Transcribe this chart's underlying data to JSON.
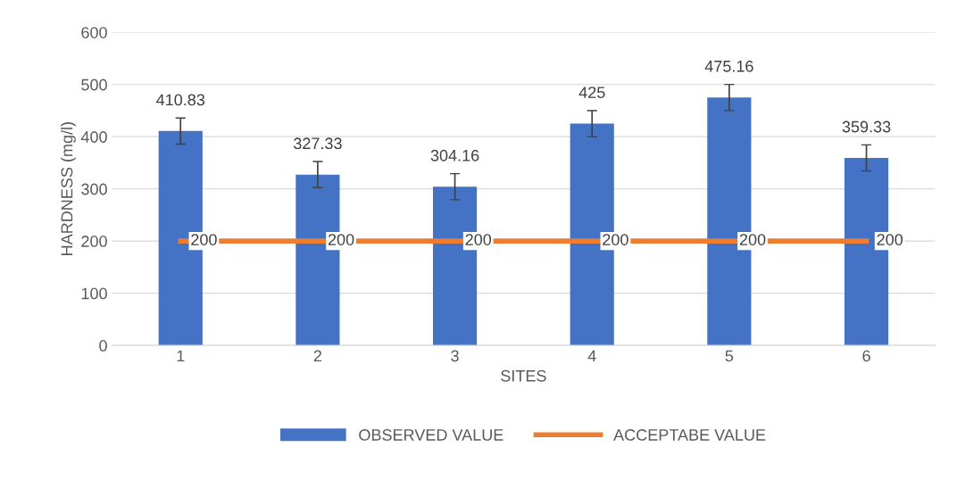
{
  "chart_data": {
    "type": "bar",
    "xlabel": "SITES",
    "ylabel": "HARDNESS (mg/l)",
    "categories": [
      "1",
      "2",
      "3",
      "4",
      "5",
      "6"
    ],
    "series": [
      {
        "name": "OBSERVED VALUE",
        "color": "#4472c4",
        "values": [
          410.83,
          327.33,
          304.16,
          425,
          475.16,
          359.33
        ],
        "errors": [
          25,
          25,
          25,
          25,
          25,
          25
        ]
      },
      {
        "name": "ACCEPTABE VALUE",
        "type": "line",
        "color": "#ed7d31",
        "values": [
          200,
          200,
          200,
          200,
          200,
          200
        ]
      }
    ],
    "ylim": [
      0,
      600
    ],
    "yticks": [
      0,
      100,
      200,
      300,
      400,
      500,
      600
    ],
    "grid": "y",
    "legend": "bottom",
    "data_labels": true,
    "marker": "none"
  }
}
